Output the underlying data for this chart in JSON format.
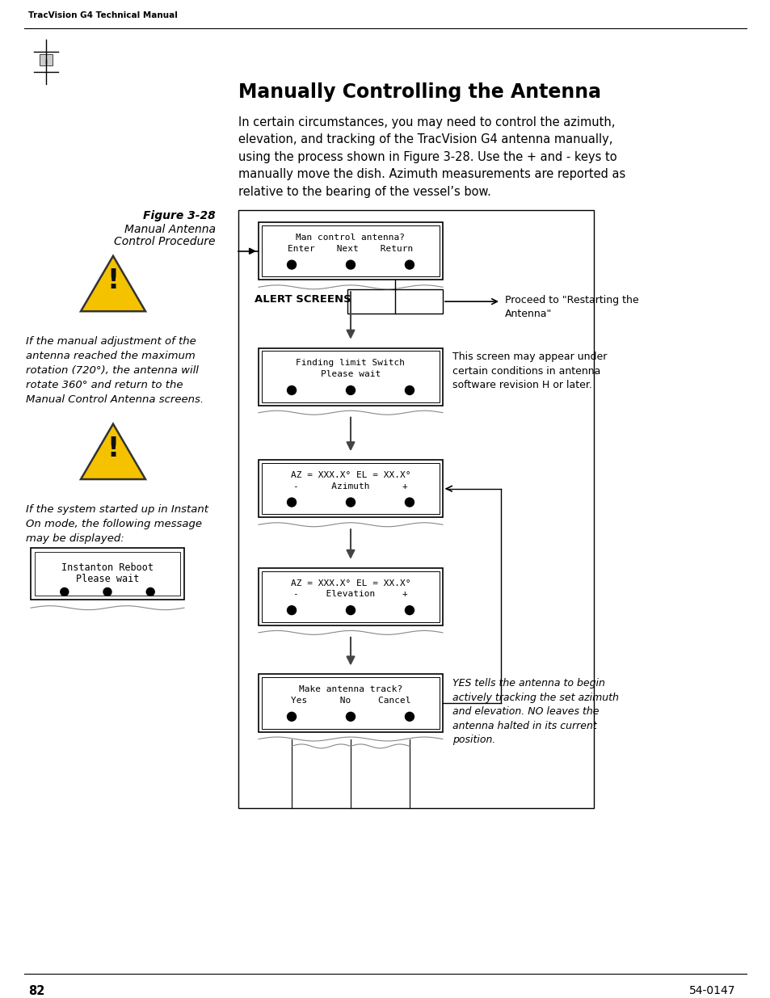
{
  "page_title": "TracVision G4 Technical Manual",
  "section_title": "Manually Controlling the Antenna",
  "body_text": "In certain circumstances, you may need to control the azimuth,\nelevation, and tracking of the TracVision G4 antenna manually,\nusing the process shown in Figure 3-28. Use the + and - keys to\nmanually move the dish. Azimuth measurements are reported as\nrelative to the bearing of the vessel’s bow.",
  "figure_label": "Figure 3-28",
  "figure_caption": "Manual Antenna\nControl Procedure",
  "warning1_text": "If the manual adjustment of the\nantenna reached the maximum\nrotation (720°), the antenna will\nrotate 360° and return to the\nManual Control Antenna screens.",
  "warning2_text": "If the system started up in Instant\nOn mode, the following message\nmay be displayed:",
  "instanton_box_line1": "Instanton Reboot",
  "instanton_box_line2": "Please wait",
  "screen1_line1": "Man control antenna?",
  "screen1_line2": "Enter    Next    Return",
  "screen2_line1": "Finding limit Switch",
  "screen2_line2": "Please wait",
  "screen3_line1": "AZ = XXX.X° EL = XX.X°",
  "screen3_line2": "-      Azimuth      +",
  "screen4_line1": "AZ = XXX.X° EL = XX.X°",
  "screen4_line2": "-     Elevation     +",
  "screen5_line1": "Make antenna track?",
  "screen5_line2": "Yes      No     Cancel",
  "alert_label": "ALERT SCREENS",
  "note1_text": "Proceed to \"Restarting the\nAntenna\"",
  "note2_text": "This screen may appear under\ncertain conditions in antenna\nsoftware revision H or later.",
  "note3_text": "YES tells the antenna to begin\nactively tracking the set azimuth\nand elevation. NO leaves the\nantenna halted in its current\nposition.",
  "page_number": "82",
  "doc_number": "54-0147",
  "bg_color": "#ffffff",
  "warning_yellow": "#F5C200",
  "warning_border": "#333333"
}
